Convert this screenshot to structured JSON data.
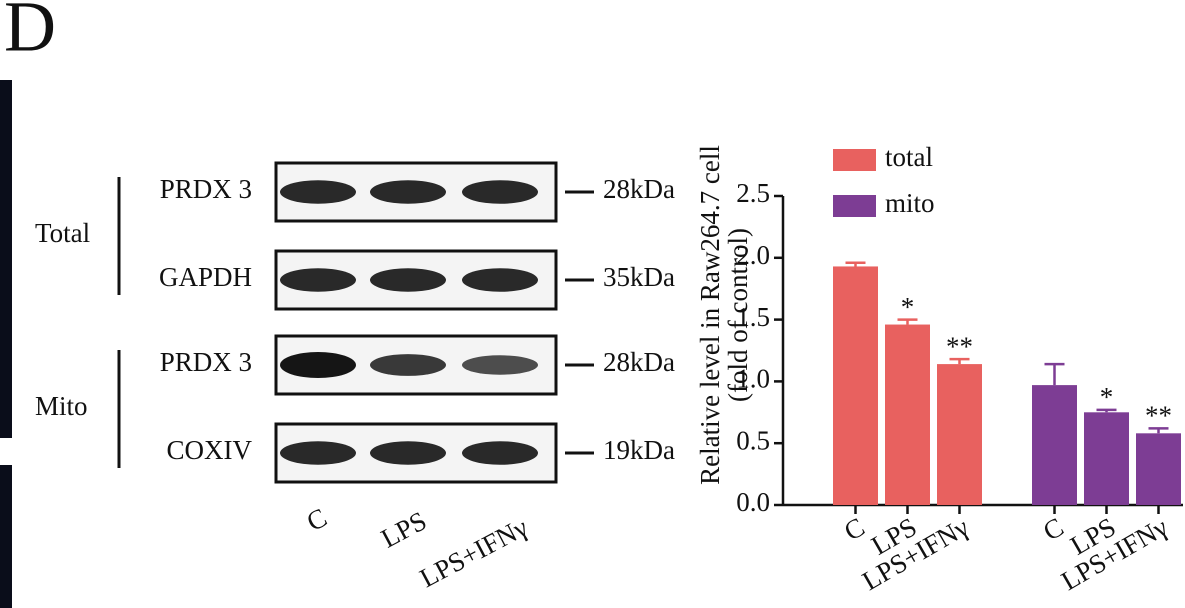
{
  "panel_label": "D",
  "blot": {
    "groups": [
      {
        "label": "Total",
        "rows": [
          {
            "protein": "PRDX 3",
            "size": "28kDa"
          },
          {
            "protein": "GAPDH",
            "size": "35kDa"
          }
        ]
      },
      {
        "label": "Mito",
        "rows": [
          {
            "protein": "PRDX 3",
            "size": "28kDa"
          },
          {
            "protein": "COXIV",
            "size": "19kDa"
          }
        ]
      }
    ],
    "lanes": [
      "C",
      "LPS",
      "LPS+IFNγ"
    ]
  },
  "chart_data": {
    "type": "bar",
    "y_label": [
      "Relative level in Raw264.7 cell",
      "(fold of control)"
    ],
    "categories": [
      "C",
      "LPS",
      "LPS+IFNγ"
    ],
    "series": [
      {
        "name": "total",
        "color": "#e8615f",
        "values": [
          1.93,
          1.46,
          1.14
        ],
        "errors": [
          0.03,
          0.04,
          0.04
        ],
        "annotations": [
          null,
          "*",
          "**"
        ]
      },
      {
        "name": "mito",
        "color": "#7d3d94",
        "values": [
          0.97,
          0.75,
          0.58
        ],
        "errors": [
          0.17,
          0.02,
          0.04
        ],
        "annotations": [
          null,
          "*",
          "**"
        ]
      }
    ],
    "ylim": [
      0,
      2.5
    ],
    "yticks": [
      {
        "value": 0,
        "label": "0.0"
      },
      0.5,
      {
        "value": 1,
        "label": "1.0"
      },
      1.5,
      {
        "value": 2,
        "label": "2.0"
      },
      2.5
    ],
    "legend": "top-right"
  }
}
